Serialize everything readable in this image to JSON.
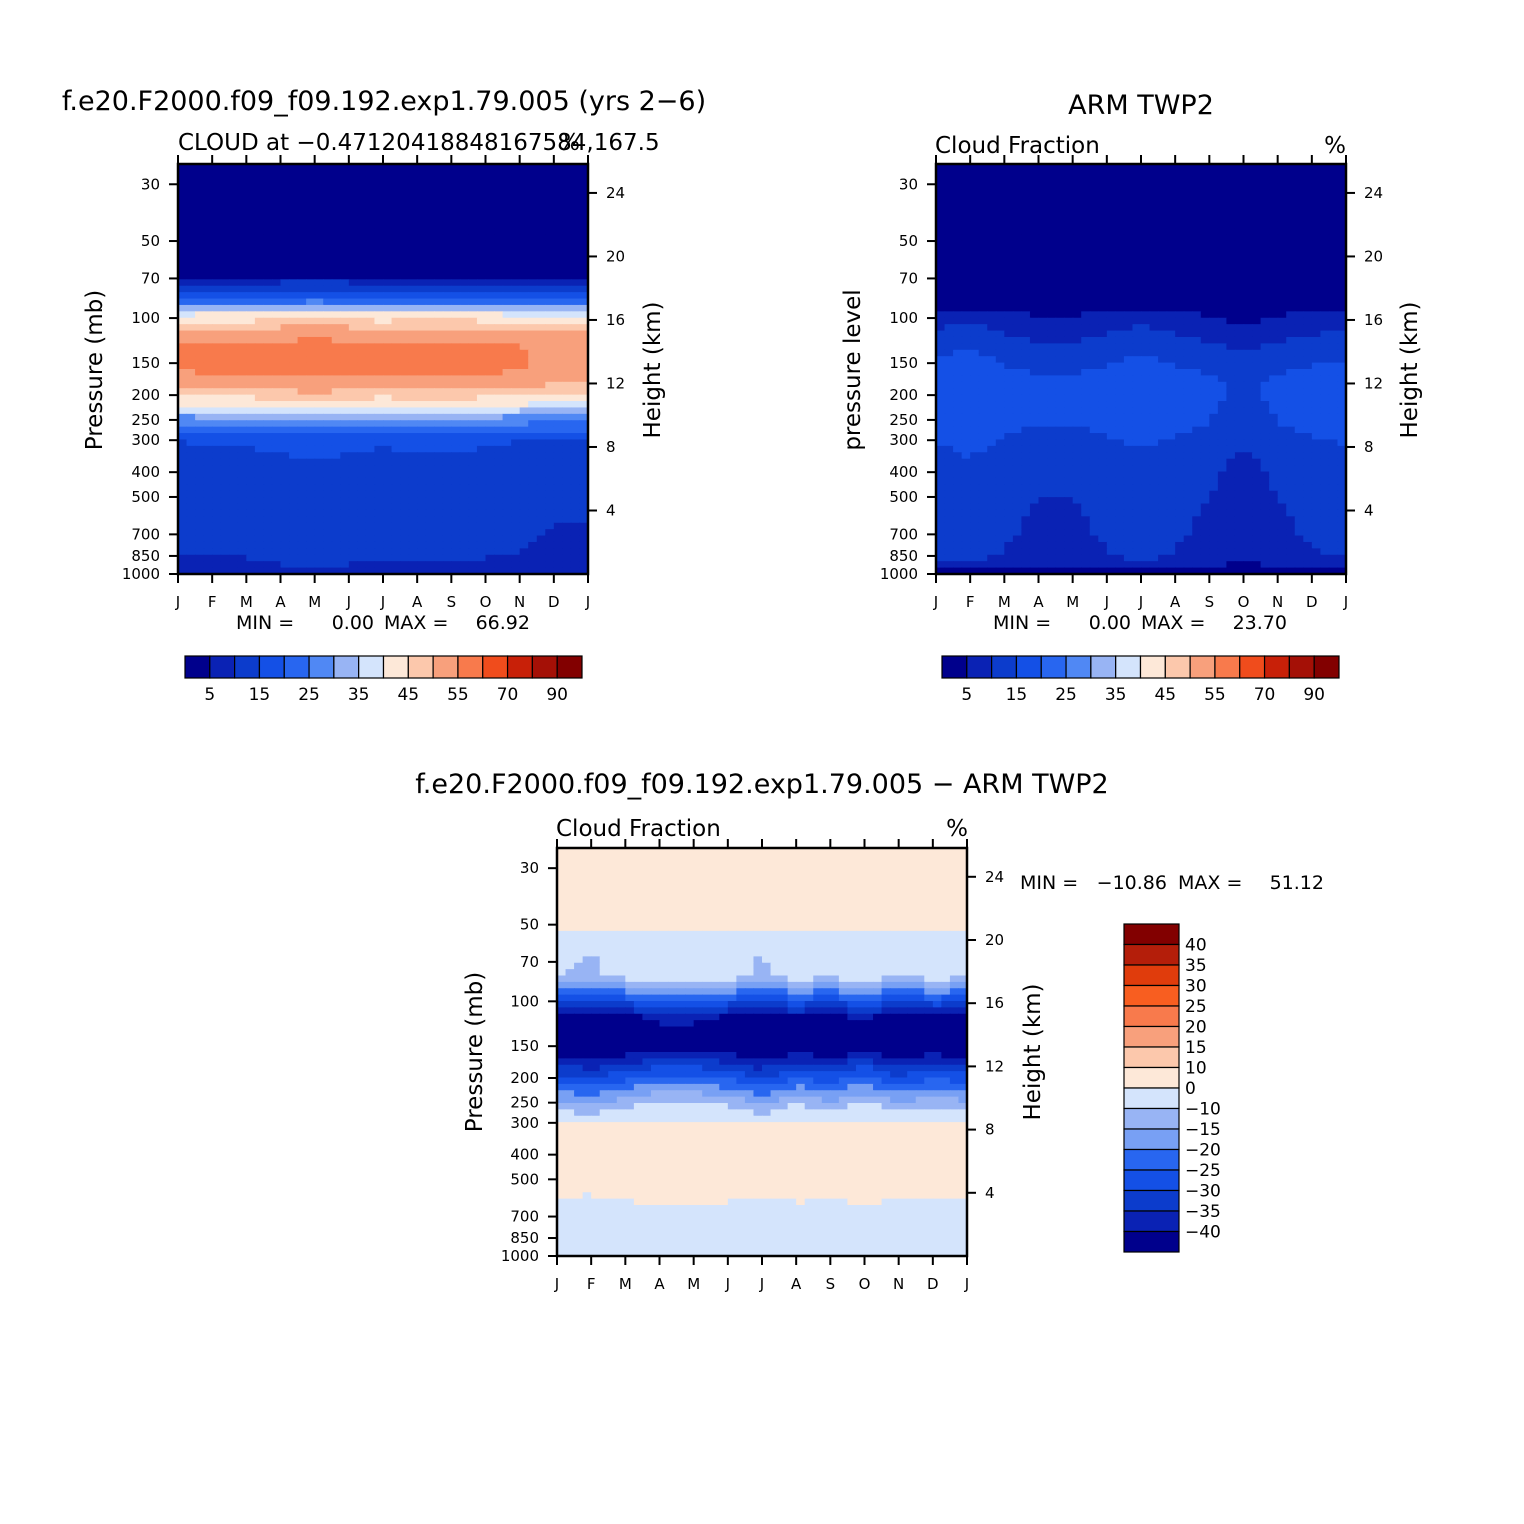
{
  "figure": {
    "title": "f.e20.F2000.f09_f09.192.exp1.79.005 (yrs 2−6)",
    "diff_title": "f.e20.F2000.f09_f09.192.exp1.79.005 − ARM TWP2"
  },
  "chart_data": [
    {
      "id": "model",
      "type": "heatmap",
      "title": "f.e20.F2000.f09_f09.192.exp1.79.005 (yrs 2−6)",
      "subtitle": "CLOUD at −0.471204188481675​84,167.5",
      "units_label": "%",
      "xlabel": "",
      "ylabel": "Pressure (mb)",
      "ylabel_right": "Height (km)",
      "x_ticks": [
        "J",
        "F",
        "M",
        "A",
        "M",
        "J",
        "J",
        "A",
        "S",
        "O",
        "N",
        "D",
        "J"
      ],
      "y_ticks": [
        30,
        50,
        70,
        100,
        150,
        200,
        250,
        300,
        400,
        500,
        700,
        850,
        1000
      ],
      "y_ticks_right": [
        24,
        20,
        16,
        12,
        8,
        4
      ],
      "ylim": [
        1000,
        25
      ],
      "y_scale": "log",
      "min_label": "MIN =",
      "min_value": "0.00",
      "max_label": "MAX =",
      "max_value": "66.92",
      "colorbar": {
        "orientation": "horizontal",
        "labels": [
          "5",
          "15",
          "25",
          "35",
          "45",
          "55",
          "70",
          "90"
        ],
        "colors": [
          "#00008c",
          "#0a22b4",
          "#0c3ccc",
          "#1450e6",
          "#2866f0",
          "#5088f4",
          "#98b4f4",
          "#d4e4fc",
          "#fde8d8",
          "#fcc8ac",
          "#f8a07c",
          "#f87a4c",
          "#f04c1c",
          "#c82008",
          "#a41006",
          "#820000"
        ]
      },
      "profile": [
        {
          "p": 25,
          "v": 0
        },
        {
          "p": 60,
          "v": 0
        },
        {
          "p": 75,
          "v": 6
        },
        {
          "p": 85,
          "v": 17
        },
        {
          "p": 95,
          "v": 35
        },
        {
          "p": 110,
          "v": 46
        },
        {
          "p": 130,
          "v": 52
        },
        {
          "p": 160,
          "v": 52
        },
        {
          "p": 190,
          "v": 46
        },
        {
          "p": 220,
          "v": 36
        },
        {
          "p": 250,
          "v": 24
        },
        {
          "p": 300,
          "v": 12
        },
        {
          "p": 400,
          "v": 8
        },
        {
          "p": 550,
          "v": 8
        },
        {
          "p": 800,
          "v": 7
        },
        {
          "p": 1000,
          "v": 4
        }
      ],
      "month_shift": [
        4,
        5,
        5,
        6,
        7,
        6,
        5,
        6,
        6,
        5,
        4,
        3,
        3
      ]
    },
    {
      "id": "obs",
      "type": "heatmap",
      "title": "ARM TWP2",
      "subtitle": "Cloud Fraction",
      "units_label": "%",
      "xlabel": "",
      "ylabel": "pressure level",
      "ylabel_right": "Height (km)",
      "x_ticks": [
        "J",
        "F",
        "M",
        "A",
        "M",
        "J",
        "J",
        "A",
        "S",
        "O",
        "N",
        "D",
        "J"
      ],
      "y_ticks": [
        30,
        50,
        70,
        100,
        150,
        200,
        250,
        300,
        400,
        500,
        700,
        850,
        1000
      ],
      "y_ticks_right": [
        24,
        20,
        16,
        12,
        8,
        4
      ],
      "ylim": [
        1000,
        25
      ],
      "y_scale": "log",
      "min_label": "MIN =",
      "min_value": "0.00",
      "max_label": "MAX =",
      "max_value": "23.70",
      "colorbar": {
        "orientation": "horizontal",
        "labels": [
          "5",
          "15",
          "25",
          "35",
          "45",
          "55",
          "70",
          "90"
        ],
        "colors": [
          "#00008c",
          "#0a22b4",
          "#0c3ccc",
          "#1450e6",
          "#2866f0",
          "#5088f4",
          "#98b4f4",
          "#d4e4fc",
          "#fde8d8",
          "#fcc8ac",
          "#f8a07c",
          "#f87a4c",
          "#f04c1c",
          "#c82008",
          "#a41006",
          "#820000"
        ]
      },
      "profile": [
        {
          "p": 25,
          "v": 0
        },
        {
          "p": 70,
          "v": 1
        },
        {
          "p": 95,
          "v": 4
        },
        {
          "p": 130,
          "v": 11
        },
        {
          "p": 180,
          "v": 16
        },
        {
          "p": 260,
          "v": 15
        },
        {
          "p": 350,
          "v": 11
        },
        {
          "p": 500,
          "v": 10
        },
        {
          "p": 700,
          "v": 9
        },
        {
          "p": 850,
          "v": 8
        },
        {
          "p": 1000,
          "v": 3
        }
      ],
      "month_shift": [
        3,
        5,
        2,
        0,
        0,
        2,
        4,
        2,
        0,
        -2,
        0,
        2,
        3
      ]
    },
    {
      "id": "diff",
      "type": "heatmap",
      "title": "f.e20.F2000.f09_f09.192.exp1.79.005 − ARM TWP2",
      "subtitle": "Cloud Fraction",
      "units_label": "%",
      "xlabel": "",
      "ylabel": "Pressure (mb)",
      "ylabel_right": "Height (km)",
      "x_ticks": [
        "J",
        "F",
        "M",
        "A",
        "M",
        "J",
        "J",
        "A",
        "S",
        "O",
        "N",
        "D",
        "J"
      ],
      "y_ticks": [
        30,
        50,
        70,
        100,
        150,
        200,
        250,
        300,
        400,
        500,
        700,
        850,
        1000
      ],
      "y_ticks_right": [
        24,
        20,
        16,
        12,
        8,
        4
      ],
      "ylim": [
        1000,
        25
      ],
      "y_scale": "log",
      "min_label": "MIN =",
      "min_value": "−10.86",
      "max_label": "MAX =",
      "max_value": "51.12",
      "colorbar": {
        "orientation": "vertical",
        "labels": [
          "40",
          "35",
          "30",
          "25",
          "20",
          "15",
          "10",
          "0",
          "−10",
          "−15",
          "−20",
          "−25",
          "−30",
          "−35",
          "−40"
        ],
        "colors": [
          "#820000",
          "#b41e0a",
          "#e03c0c",
          "#f85e20",
          "#f87a4c",
          "#f8a07c",
          "#fcc8ac",
          "#fde8d8",
          "#d4e4fc",
          "#98b4f4",
          "#78a0f4",
          "#2866f0",
          "#1450e6",
          "#0c3ccc",
          "#0a22b4",
          "#00008c"
        ]
      },
      "profile": [
        {
          "p": 25,
          "v": -3
        },
        {
          "p": 50,
          "v": -3
        },
        {
          "p": 55,
          "v": 3
        },
        {
          "p": 80,
          "v": 5
        },
        {
          "p": 95,
          "v": 20
        },
        {
          "p": 115,
          "v": 38
        },
        {
          "p": 145,
          "v": 45
        },
        {
          "p": 175,
          "v": 32
        },
        {
          "p": 210,
          "v": 20
        },
        {
          "p": 260,
          "v": 7
        },
        {
          "p": 320,
          "v": -3
        },
        {
          "p": 500,
          "v": -2
        },
        {
          "p": 800,
          "v": 2
        },
        {
          "p": 1000,
          "v": 2
        }
      ],
      "month_shift": [
        6,
        8,
        4,
        0,
        0,
        3,
        8,
        2,
        6,
        0,
        7,
        3,
        6
      ]
    }
  ]
}
